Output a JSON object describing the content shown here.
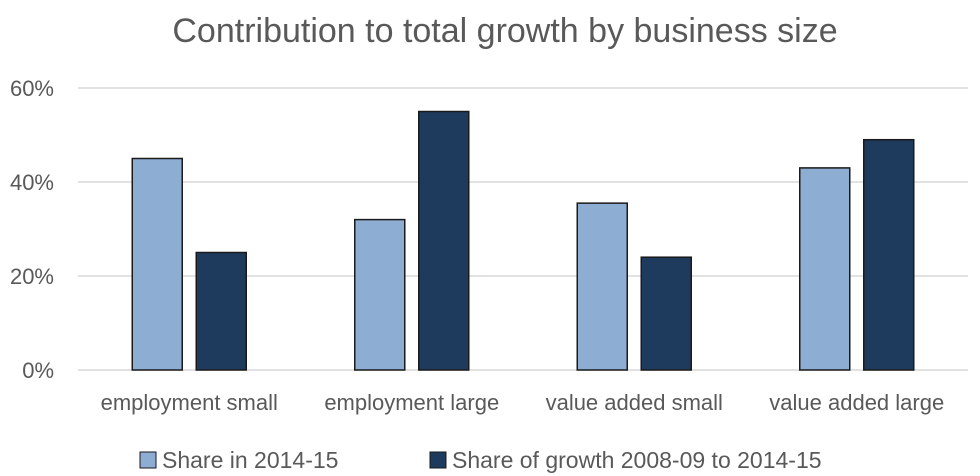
{
  "chart_data": {
    "type": "bar",
    "title": "Contribution to total growth by business size",
    "xlabel": "",
    "ylabel": "",
    "categories": [
      "employment small",
      "employment large",
      "value added small",
      "value added large"
    ],
    "series": [
      {
        "name": "Share in 2014-15",
        "values": [
          45,
          32,
          35.5,
          43
        ],
        "color": "#8eadd2"
      },
      {
        "name": "Share of growth 2008-09 to 2014-15",
        "values": [
          25,
          55,
          24,
          49
        ],
        "color": "#1e3a5c"
      }
    ],
    "ylim": [
      0,
      60
    ],
    "yticks": [
      {
        "value": 0,
        "label": "0%"
      },
      {
        "value": 20,
        "label": "20%"
      },
      {
        "value": 40,
        "label": "40%"
      },
      {
        "value": 60,
        "label": "60%"
      }
    ],
    "grid": true,
    "legend_position": "bottom",
    "colors": {
      "grid": "#d9d9d9",
      "text": "#595959",
      "title": "#595959",
      "bar_stroke": "#1a1a1a"
    }
  }
}
